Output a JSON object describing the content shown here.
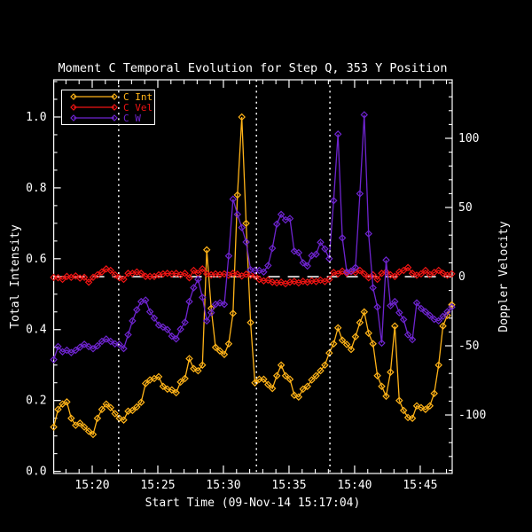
{
  "figure": {
    "background": "#000000",
    "frame_color": "#ffffff"
  },
  "chart_data": {
    "type": "line",
    "title": "Moment C Temporal Evolution for Step Q, 353 Y Position",
    "xlabel": "Start Time (09-Nov-14 15:17:04)",
    "ylabel_left": "Total Intensity",
    "ylabel_right": "Doppler Velocity",
    "x_start_time": "15:17:04",
    "x_date": "09-Nov-14",
    "x_range_minutes": [
      0,
      30.37
    ],
    "x_major_ticks": [
      {
        "label": "15:20",
        "t_min": 2.933
      },
      {
        "label": "15:25",
        "t_min": 7.933
      },
      {
        "label": "15:30",
        "t_min": 12.933
      },
      {
        "label": "15:35",
        "t_min": 17.933
      },
      {
        "label": "15:40",
        "t_min": 22.933
      },
      {
        "label": "15:45",
        "t_min": 27.933
      }
    ],
    "x_minor_step_min": 1.0,
    "x_minor_first_min": 0.933,
    "y_left": {
      "range": [
        -0.006,
        1.105
      ],
      "tick_values": [
        0.0,
        0.2,
        0.4,
        0.6,
        0.8,
        1.0
      ],
      "tick_labels": [
        "0.0",
        "0.2",
        "0.4",
        "0.6",
        "0.8",
        "1.0"
      ],
      "minor_step": 0.05
    },
    "y_right": {
      "range": [
        -142.3,
        142.3
      ],
      "tick_values": [
        -100,
        -50,
        0,
        50,
        100
      ],
      "tick_labels": [
        "-100",
        "-50",
        "0",
        "50",
        "100"
      ],
      "minor_step": 10
    },
    "zero_line": {
      "axis": "right",
      "value": 0,
      "style": "dashed",
      "color": "#ffffff"
    },
    "event_lines_minutes": [
      4.95,
      15.45,
      21.05
    ],
    "grid": false,
    "legend_position": "top-left",
    "cadence_seconds": 20,
    "marker": "open-diamond",
    "series": [
      {
        "name": "C Int",
        "axis": "left",
        "color": "#FFB318",
        "values": [
          0.125,
          0.175,
          0.19,
          0.196,
          0.15,
          0.13,
          0.136,
          0.125,
          0.113,
          0.104,
          0.15,
          0.175,
          0.19,
          0.18,
          0.163,
          0.15,
          0.145,
          0.17,
          0.172,
          0.182,
          0.195,
          0.248,
          0.258,
          0.262,
          0.267,
          0.24,
          0.232,
          0.23,
          0.222,
          0.252,
          0.262,
          0.318,
          0.29,
          0.284,
          0.3,
          0.625,
          0.46,
          0.35,
          0.34,
          0.33,
          0.36,
          0.446,
          0.78,
          1.0,
          0.7,
          0.42,
          0.25,
          0.26,
          0.26,
          0.245,
          0.234,
          0.27,
          0.3,
          0.27,
          0.26,
          0.215,
          0.21,
          0.232,
          0.24,
          0.258,
          0.27,
          0.284,
          0.3,
          0.334,
          0.36,
          0.405,
          0.37,
          0.358,
          0.344,
          0.38,
          0.42,
          0.45,
          0.39,
          0.36,
          0.27,
          0.24,
          0.212,
          0.28,
          0.41,
          0.2,
          0.172,
          0.152,
          0.15,
          0.185,
          0.18,
          0.175,
          0.185,
          0.22,
          0.3,
          0.41,
          0.44,
          0.47
        ]
      },
      {
        "name": "C Vel",
        "axis": "right",
        "color": "#EF1413",
        "values": [
          -0.6,
          -0.8,
          -1.9,
          0.2,
          -0.5,
          0.5,
          -1,
          -0.5,
          -4,
          -0.5,
          1.3,
          3.4,
          5.6,
          4.5,
          1.3,
          -0.8,
          -1.9,
          2.4,
          2.4,
          3.4,
          2.4,
          0.2,
          0.2,
          0.2,
          1.3,
          1.9,
          2.4,
          1.9,
          2.4,
          1.3,
          2.4,
          -0.8,
          4.5,
          2.4,
          5.6,
          2,
          1.3,
          2,
          1.5,
          2,
          1,
          2.4,
          1.7,
          0.5,
          1.7,
          1,
          0.5,
          -2,
          -3,
          -2.5,
          -4,
          -4.5,
          -4,
          -5.1,
          -4,
          -3.4,
          -4.5,
          -3.4,
          -4,
          -3,
          -3.5,
          -2.5,
          -3.5,
          -2,
          3,
          2,
          4,
          2.5,
          3.5,
          3,
          4.5,
          2,
          -0.8,
          1.3,
          -1.9,
          2.4,
          3.4,
          1.3,
          0.2,
          3.4,
          4.5,
          6.6,
          2.4,
          1,
          2,
          4.5,
          1.5,
          3,
          4.5,
          2.4,
          1,
          2
        ]
      },
      {
        "name": "C W",
        "axis": "right",
        "color": "#6E24CF",
        "values": [
          -60,
          -50.6,
          -54.3,
          -53.2,
          -54.9,
          -53.2,
          -51,
          -48.9,
          -50.6,
          -52.1,
          -50,
          -46.8,
          -45.1,
          -46.8,
          -48.5,
          -49,
          -52,
          -42,
          -32,
          -24,
          -18,
          -17,
          -25.4,
          -30,
          -35,
          -36.5,
          -38.3,
          -43,
          -45,
          -38,
          -33,
          -18,
          -8,
          -2,
          -15,
          -32,
          -26,
          -20,
          -19,
          -20,
          15,
          56,
          45,
          35.5,
          25,
          5,
          4.5,
          4.5,
          3.4,
          8,
          20.5,
          38,
          45,
          41,
          42,
          18.4,
          17.3,
          10,
          7.7,
          15.2,
          16.2,
          24.8,
          20,
          13,
          55,
          103,
          28,
          3.4,
          4,
          6.6,
          60,
          117,
          31,
          -8,
          -22,
          -48,
          12,
          -21,
          -18,
          -26,
          -31,
          -42,
          -45.5,
          -19,
          -23,
          -25.4,
          -28,
          -30.8,
          -31.9,
          -28.7,
          -25.4,
          -22
        ]
      }
    ]
  }
}
